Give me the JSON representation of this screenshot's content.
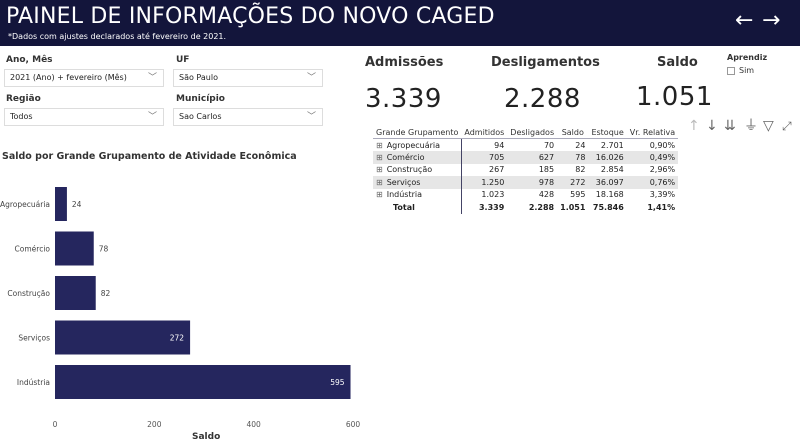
{
  "header": {
    "title": "PAINEL DE INFORMAÇÕES DO NOVO CAGED",
    "subtitle": "*Dados com ajustes declarados até fevereiro de 2021.",
    "back": "←",
    "forward": "→"
  },
  "filters": [
    {
      "label": "Ano, Mês",
      "value": "2021 (Ano) + fevereiro (Mês)"
    },
    {
      "label": "UF",
      "value": "São Paulo"
    },
    {
      "label": "Região",
      "value": "Todos"
    },
    {
      "label": "Município",
      "value": "Sao Carlos"
    }
  ],
  "aprendiz": {
    "label": "Aprendiz",
    "option": "Sim",
    "checked": false
  },
  "kpis": [
    {
      "label": "Admissões",
      "value": "3.339"
    },
    {
      "label": "Desligamentos",
      "value": "2.288"
    },
    {
      "label": "Saldo",
      "value": "1.051"
    }
  ],
  "toolbar": {
    "up": "↑",
    "down": "↓",
    "expand": "⇊",
    "hierarchy": "⏚",
    "filter": "▽",
    "focus": "⤢"
  },
  "table": {
    "headers": [
      "Grande Grupamento",
      "Admitidos",
      "Desligados",
      "Saldo",
      "Estoque",
      "Vr. Relativa"
    ],
    "rows": [
      [
        "Agropecuária",
        "94",
        "70",
        "24",
        "2.701",
        "0,90%"
      ],
      [
        "Comércio",
        "705",
        "627",
        "78",
        "16.026",
        "0,49%"
      ],
      [
        "Construção",
        "267",
        "185",
        "82",
        "2.854",
        "2,96%"
      ],
      [
        "Serviços",
        "1.250",
        "978",
        "272",
        "36.097",
        "0,76%"
      ],
      [
        "Indústria",
        "1.023",
        "428",
        "595",
        "18.168",
        "3,39%"
      ]
    ],
    "total": [
      "Total",
      "3.339",
      "2.288",
      "1.051",
      "75.846",
      "1,41%"
    ]
  },
  "chart_data": {
    "type": "bar",
    "orientation": "horizontal",
    "title": "Saldo por Grande Grupamento de Atividade Econômica",
    "categories": [
      "Agropecuária",
      "Comércio",
      "Construção",
      "Serviços",
      "Indústria"
    ],
    "values": [
      24,
      78,
      82,
      272,
      595
    ],
    "xlabel": "Saldo",
    "ylabel": "",
    "xlim": [
      0,
      600
    ],
    "xticks": [
      0,
      200,
      400,
      600
    ],
    "color": "#25265e"
  }
}
